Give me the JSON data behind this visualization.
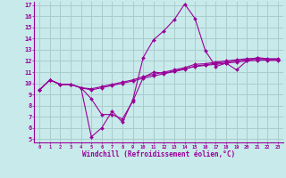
{
  "background_color": "#c8eaea",
  "grid_color": "#aacccc",
  "line_color": "#990099",
  "xlabel": "Windchill (Refroidissement éolien,°C)",
  "xlim": [
    -0.5,
    23.5
  ],
  "ylim": [
    4.7,
    17.3
  ],
  "xticks": [
    0,
    1,
    2,
    3,
    4,
    5,
    6,
    7,
    8,
    9,
    10,
    11,
    12,
    13,
    14,
    15,
    16,
    17,
    18,
    19,
    20,
    21,
    22,
    23
  ],
  "yticks": [
    5,
    6,
    7,
    8,
    9,
    10,
    11,
    12,
    13,
    14,
    15,
    16,
    17
  ],
  "series": [
    {
      "x": [
        0,
        1,
        2,
        3,
        4,
        5,
        6,
        7,
        8,
        9,
        10,
        11,
        12,
        13,
        14,
        15,
        16,
        17,
        18,
        19,
        20,
        21,
        22,
        23
      ],
      "y": [
        9.4,
        10.3,
        9.9,
        9.9,
        9.6,
        8.6,
        7.2,
        7.2,
        6.8,
        8.4,
        10.5,
        11.0,
        10.9,
        11.1,
        11.3,
        11.5,
        11.6,
        11.7,
        11.8,
        11.9,
        12.0,
        12.05,
        12.1,
        12.15
      ]
    },
    {
      "x": [
        0,
        1,
        2,
        3,
        4,
        5,
        6,
        7,
        8,
        9,
        10,
        11,
        12,
        13,
        14,
        15,
        16,
        17,
        18,
        19,
        20,
        21,
        22,
        23
      ],
      "y": [
        9.4,
        10.3,
        9.9,
        9.9,
        9.6,
        5.2,
        6.0,
        7.5,
        6.5,
        8.5,
        12.3,
        13.9,
        14.7,
        15.7,
        17.1,
        15.8,
        12.9,
        11.5,
        11.8,
        11.2,
        12.0,
        12.3,
        12.2,
        12.2
      ]
    },
    {
      "x": [
        0,
        1,
        2,
        3,
        4,
        5,
        6,
        7,
        8,
        9,
        10,
        11,
        12,
        13,
        14,
        15,
        16,
        17,
        18,
        19,
        20,
        21,
        22,
        23
      ],
      "y": [
        9.4,
        10.3,
        9.9,
        9.9,
        9.6,
        9.5,
        9.7,
        9.9,
        10.1,
        10.3,
        10.6,
        10.8,
        11.0,
        11.2,
        11.4,
        11.7,
        11.75,
        11.9,
        12.0,
        12.1,
        12.2,
        12.25,
        12.15,
        12.15
      ]
    },
    {
      "x": [
        0,
        1,
        2,
        3,
        4,
        5,
        6,
        7,
        8,
        9,
        10,
        11,
        12,
        13,
        14,
        15,
        16,
        17,
        18,
        19,
        20,
        21,
        22,
        23
      ],
      "y": [
        9.4,
        10.3,
        9.9,
        9.9,
        9.6,
        9.4,
        9.6,
        9.8,
        10.0,
        10.2,
        10.45,
        10.65,
        10.85,
        11.05,
        11.25,
        11.55,
        11.65,
        11.8,
        11.9,
        12.0,
        12.1,
        12.15,
        12.05,
        12.05
      ]
    }
  ]
}
